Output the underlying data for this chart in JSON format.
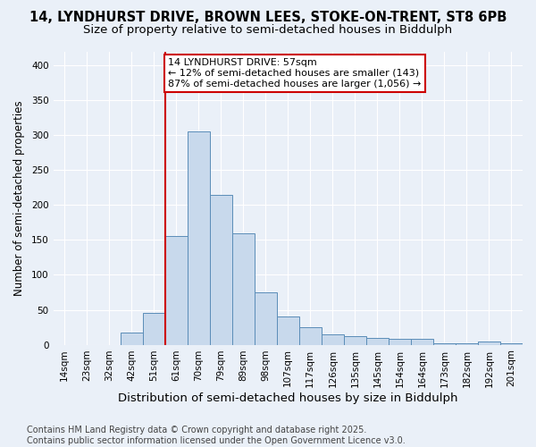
{
  "title_line1": "14, LYNDHURST DRIVE, BROWN LEES, STOKE-ON-TRENT, ST8 6PB",
  "title_line2": "Size of property relative to semi-detached houses in Biddulph",
  "xlabel": "Distribution of semi-detached houses by size in Biddulph",
  "ylabel": "Number of semi-detached properties",
  "categories": [
    "14sqm",
    "23sqm",
    "32sqm",
    "42sqm",
    "51sqm",
    "61sqm",
    "70sqm",
    "79sqm",
    "89sqm",
    "98sqm",
    "107sqm",
    "117sqm",
    "126sqm",
    "135sqm",
    "145sqm",
    "154sqm",
    "164sqm",
    "173sqm",
    "182sqm",
    "192sqm",
    "201sqm"
  ],
  "values": [
    0,
    0,
    0,
    17,
    46,
    155,
    305,
    215,
    160,
    75,
    40,
    25,
    15,
    12,
    10,
    8,
    8,
    2,
    2,
    5,
    2
  ],
  "bar_color": "#c8d9ec",
  "bar_edge_color": "#5b8db8",
  "annotation_text": "14 LYNDHURST DRIVE: 57sqm\n← 12% of semi-detached houses are smaller (143)\n87% of semi-detached houses are larger (1,056) →",
  "red_line_color": "#cc0000",
  "annotation_box_facecolor": "#ffffff",
  "annotation_box_edgecolor": "#cc0000",
  "ylim": [
    0,
    420
  ],
  "yticks": [
    0,
    50,
    100,
    150,
    200,
    250,
    300,
    350,
    400
  ],
  "footer_text": "Contains HM Land Registry data © Crown copyright and database right 2025.\nContains public sector information licensed under the Open Government Licence v3.0.",
  "bg_color": "#eaf0f8",
  "plot_bg_color": "#eaf0f8",
  "grid_color": "#ffffff",
  "title_fontsize": 10.5,
  "subtitle_fontsize": 9.5,
  "xlabel_fontsize": 9.5,
  "ylabel_fontsize": 8.5,
  "tick_fontsize": 7.5,
  "annotation_fontsize": 8,
  "footer_fontsize": 7
}
